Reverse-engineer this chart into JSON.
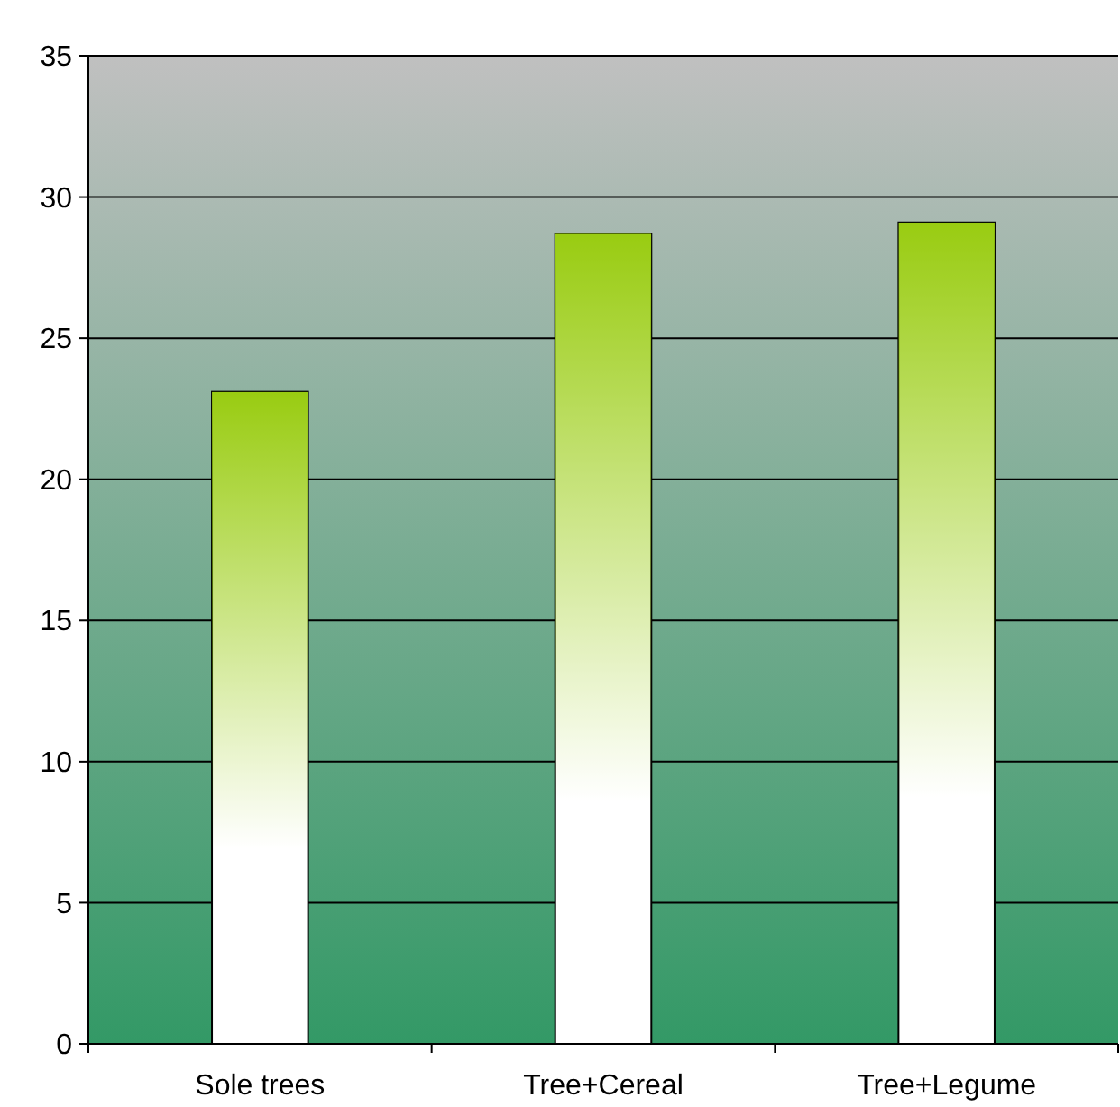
{
  "chart_data": {
    "type": "bar",
    "categories": [
      "Sole trees",
      "Tree+Cereal",
      "Tree+Legume"
    ],
    "values": [
      23.1,
      28.7,
      29.1
    ],
    "color": "#99cc11",
    "ylim": [
      0,
      35
    ],
    "yticks": [
      0,
      5,
      10,
      15,
      20,
      25,
      30,
      35
    ],
    "grid": "y"
  }
}
